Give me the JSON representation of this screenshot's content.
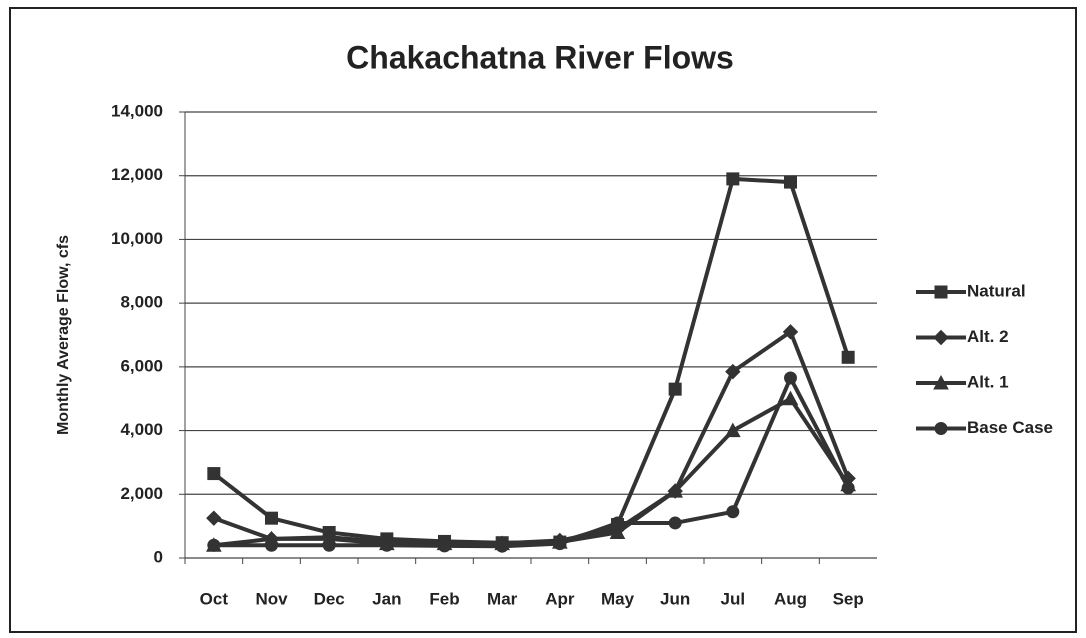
{
  "chart_data": {
    "type": "line",
    "title": "Chakachatna River Flows",
    "y_label": "Monthly Average Flow, cfs",
    "categories": [
      "Oct",
      "Nov",
      "Dec",
      "Jan",
      "Feb",
      "Mar",
      "Apr",
      "May",
      "Jun",
      "Jul",
      "Aug",
      "Sep"
    ],
    "series": [
      {
        "name": "Natural",
        "color": "#333333",
        "marker": "square",
        "values": [
          2650,
          1250,
          800,
          600,
          520,
          480,
          500,
          1050,
          5300,
          11900,
          11800,
          6300
        ]
      },
      {
        "name": "Alt. 2",
        "color": "#333333",
        "marker": "diamond",
        "values": [
          1250,
          600,
          650,
          500,
          480,
          460,
          550,
          900,
          2100,
          5850,
          7100,
          2500
        ]
      },
      {
        "name": "Alt. 1",
        "color": "#333333",
        "marker": "triangle",
        "values": [
          400,
          600,
          600,
          450,
          450,
          450,
          500,
          800,
          2100,
          4000,
          5000,
          2300
        ]
      },
      {
        "name": "Base Case",
        "color": "#333333",
        "marker": "circle",
        "values": [
          400,
          400,
          400,
          400,
          380,
          370,
          450,
          1100,
          1100,
          1450,
          5650,
          2200
        ]
      }
    ],
    "ylim": [
      0,
      14000
    ],
    "yticks": [
      0,
      {
        "value": 2000,
        "label": "2,000"
      },
      {
        "value": 4000,
        "label": "4,000"
      },
      {
        "value": 6000,
        "label": "6,000"
      },
      {
        "value": 8000,
        "label": "8,000"
      },
      {
        "value": 10000,
        "label": "10,000"
      },
      {
        "value": 12000,
        "label": "12,000"
      },
      {
        "value": 14000,
        "label": "14,000"
      }
    ],
    "grid": true,
    "legend": "right"
  }
}
